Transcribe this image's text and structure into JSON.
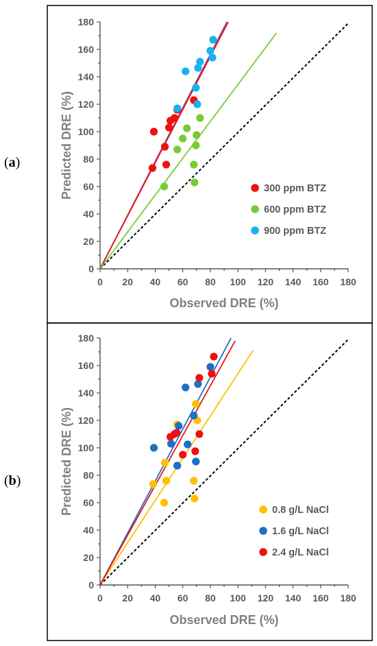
{
  "panels": [
    {
      "label_open": "(",
      "label_bold": "a",
      "label_close": ")"
    },
    {
      "label_open": "(",
      "label_bold": "b",
      "label_close": ")"
    }
  ],
  "chart_data": [
    {
      "type": "scatter",
      "xlabel": "Observed DRE (%)",
      "ylabel": "Predicted DRE (%)",
      "xlim": [
        0,
        180
      ],
      "ylim": [
        0,
        180
      ],
      "xticks": [
        0,
        20,
        40,
        60,
        80,
        100,
        120,
        140,
        160,
        180
      ],
      "yticks": [
        0,
        20,
        40,
        60,
        80,
        100,
        120,
        140,
        160,
        180
      ],
      "legend_position": "bottom-right",
      "grid": false,
      "series": [
        {
          "name": "300 ppm BTZ",
          "color": "#ee1111",
          "points": [
            [
              39,
              100
            ],
            [
              38,
              73.5
            ],
            [
              47,
              89
            ],
            [
              48,
              76
            ],
            [
              50,
              103
            ],
            [
              51,
              108
            ],
            [
              54,
              110
            ],
            [
              56,
              116
            ],
            [
              68,
              123
            ]
          ]
        },
        {
          "name": "600 ppm BTZ",
          "color": "#77cc33",
          "points": [
            [
              46.5,
              60
            ],
            [
              56,
              87
            ],
            [
              60,
              95
            ],
            [
              63,
              102.5
            ],
            [
              68,
              76
            ],
            [
              68.5,
              63
            ],
            [
              69.5,
              90
            ],
            [
              70,
              97.5
            ],
            [
              72.5,
              110
            ]
          ]
        },
        {
          "name": "900 ppm BTZ",
          "color": "#1ab2ee",
          "points": [
            [
              56,
              117
            ],
            [
              62,
              144
            ],
            [
              69.5,
              132
            ],
            [
              70.5,
              120
            ],
            [
              71,
              146.5
            ],
            [
              72.5,
              151
            ],
            [
              80,
              159
            ],
            [
              81.5,
              154
            ],
            [
              82,
              167
            ]
          ]
        }
      ],
      "fit_lines": [
        {
          "color": "#7b4fa0",
          "x": [
            0,
            92
          ],
          "y": [
            0,
            180
          ]
        },
        {
          "color": "#ee1111",
          "x": [
            0,
            93
          ],
          "y": [
            0,
            180
          ]
        },
        {
          "color": "#77cc33",
          "x": [
            0,
            128
          ],
          "y": [
            0,
            172
          ]
        },
        {
          "color": "#000000",
          "x": [
            0,
            180
          ],
          "y": [
            0,
            179
          ],
          "dashed": true
        }
      ]
    },
    {
      "type": "scatter",
      "xlabel": "Observed DRE (%)",
      "ylabel": "Predicted DRE (%)",
      "xlim": [
        0,
        180
      ],
      "ylim": [
        0,
        180
      ],
      "xticks": [
        0,
        20,
        40,
        60,
        80,
        100,
        120,
        140,
        160,
        180
      ],
      "yticks": [
        0,
        20,
        40,
        60,
        80,
        100,
        120,
        140,
        160,
        180
      ],
      "legend_position": "bottom-right",
      "grid": false,
      "series": [
        {
          "name": "0.8 g/L NaCl",
          "color": "#ffc000",
          "points": [
            [
              38.5,
              73.5
            ],
            [
              46.5,
              60
            ],
            [
              47,
              89
            ],
            [
              48,
              76
            ],
            [
              56,
              117
            ],
            [
              68,
              76
            ],
            [
              68.5,
              63
            ],
            [
              69.5,
              132
            ],
            [
              70.5,
              120
            ]
          ]
        },
        {
          "name": "1.6 g/L NaCl",
          "color": "#1f6fc4",
          "points": [
            [
              39,
              100
            ],
            [
              51.5,
              103
            ],
            [
              56,
              87
            ],
            [
              57,
              116
            ],
            [
              62,
              144
            ],
            [
              63.5,
              102.5
            ],
            [
              68,
              123.5
            ],
            [
              69.5,
              90
            ],
            [
              71,
              146.5
            ],
            [
              80,
              159
            ]
          ]
        },
        {
          "name": "2.4 g/L NaCl",
          "color": "#ee1111",
          "points": [
            [
              51,
              108
            ],
            [
              54,
              110
            ],
            [
              55.5,
              111
            ],
            [
              60,
              95
            ],
            [
              69,
              97.5
            ],
            [
              72,
              110
            ],
            [
              72,
              151
            ],
            [
              81,
              154
            ],
            [
              82.5,
              166.5
            ]
          ]
        }
      ],
      "fit_lines": [
        {
          "color": "#ffc000",
          "x": [
            0,
            111
          ],
          "y": [
            0,
            171
          ]
        },
        {
          "color": "#1f6fc4",
          "x": [
            0,
            95
          ],
          "y": [
            0,
            180
          ]
        },
        {
          "color": "#ee1111",
          "x": [
            0,
            98
          ],
          "y": [
            0,
            178
          ]
        },
        {
          "color": "#000000",
          "x": [
            0,
            180
          ],
          "y": [
            0,
            179
          ],
          "dashed": true
        }
      ]
    }
  ]
}
